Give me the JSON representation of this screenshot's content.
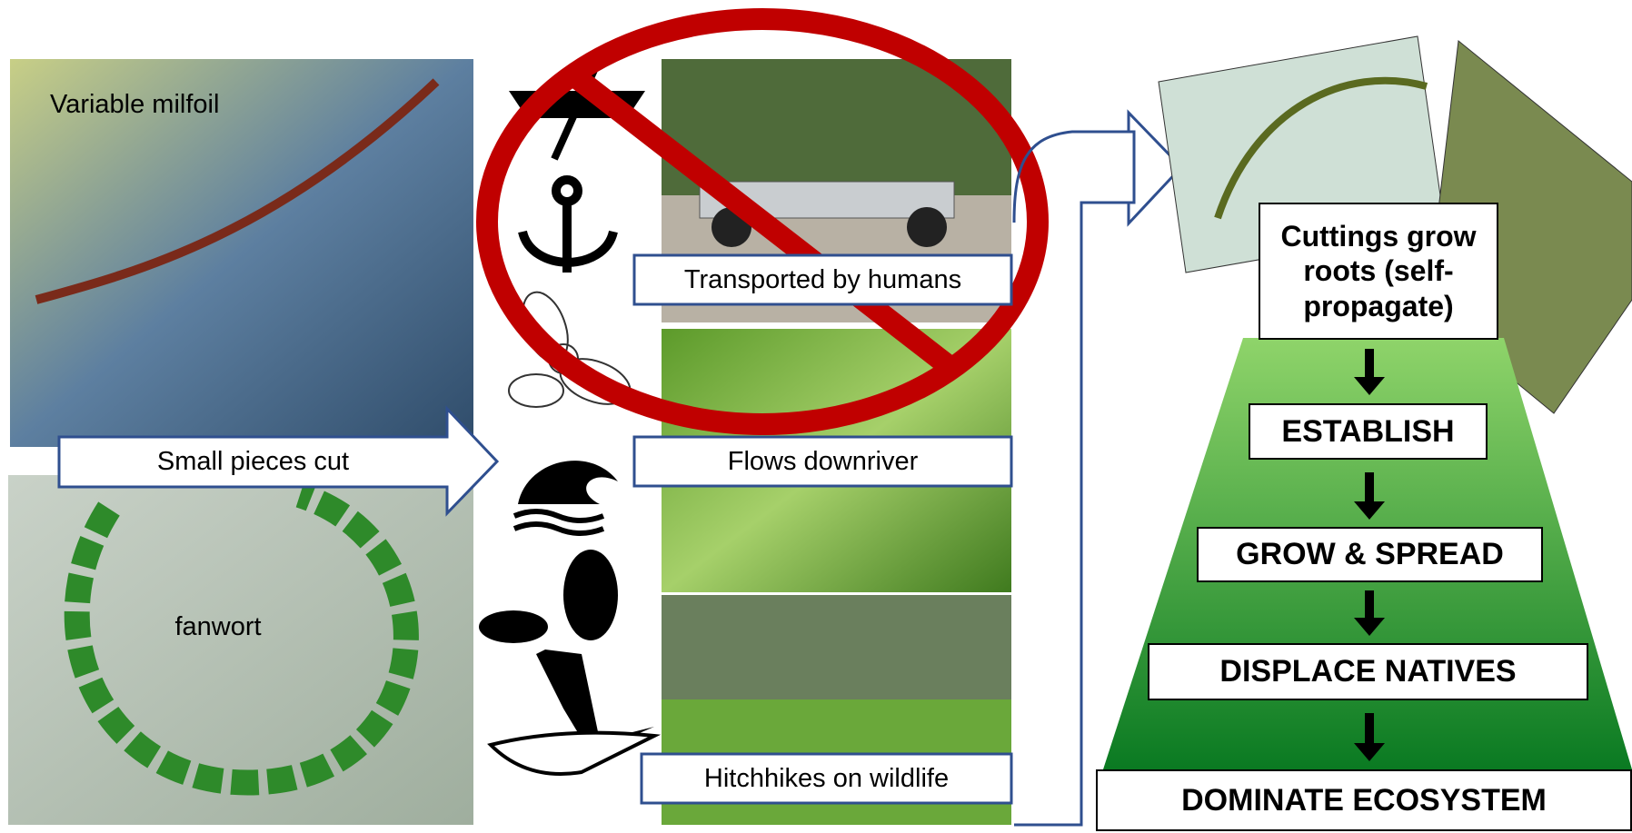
{
  "plants": [
    {
      "label": "Variable milfoil"
    },
    {
      "label": "fanwort"
    }
  ],
  "cut_label": "Small pieces cut",
  "pathways": [
    {
      "label": "Transported by humans"
    },
    {
      "label": "Flows downriver"
    },
    {
      "label": "Hitchhikes on wildlife"
    }
  ],
  "stages": [
    "Cuttings grow roots (self-propagate)",
    "ESTABLISH",
    "GROW & SPREAD",
    "DISPLACE NATIVES",
    "DOMINATE ECOSYSTEM"
  ]
}
